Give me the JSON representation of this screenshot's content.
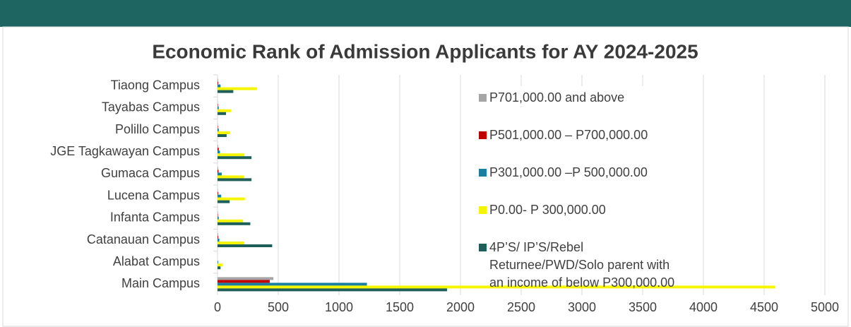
{
  "chart_data": {
    "type": "bar",
    "orientation": "horizontal",
    "title": "Economic Rank of Admission Applicants for AY 2024-2025",
    "categories": [
      "Tiaong Campus",
      "Tayabas Campus",
      "Polillo Campus",
      "JGE Tagkawayan Campus",
      "Gumaca Campus",
      "Lucena Campus",
      "Infanta Campus",
      "Catanauan Campus",
      "Alabat Campus",
      "Main Campus"
    ],
    "series": [
      {
        "name": "P701,000.00 and above",
        "color": "#a5a5a5",
        "values": [
          5,
          2,
          2,
          5,
          5,
          3,
          3,
          5,
          0,
          460
        ]
      },
      {
        "name": "P501,000.00 – P700,000.00",
        "color": "#c00000",
        "values": [
          5,
          3,
          3,
          10,
          8,
          5,
          3,
          5,
          0,
          430
        ]
      },
      {
        "name": "P301,000.00 –P 500,000.00",
        "color": "#1b7fa0",
        "values": [
          25,
          10,
          10,
          20,
          35,
          30,
          10,
          15,
          5,
          1230
        ]
      },
      {
        "name": "P0.00- P 300,000.00",
        "color": "#f5f500",
        "values": [
          325,
          110,
          100,
          220,
          215,
          225,
          210,
          220,
          40,
          4590
        ]
      },
      {
        "name": "4P’S/ IP’S/Rebel Returnee/PWD/Solo parent with an income of below P300,000.00",
        "color": "#1e5f5a",
        "values": [
          130,
          70,
          75,
          280,
          280,
          100,
          270,
          450,
          25,
          1890
        ]
      }
    ],
    "xlim": [
      0,
      5000
    ],
    "xticks": [
      0,
      500,
      1000,
      1500,
      2000,
      2500,
      3000,
      3500,
      4000,
      4500,
      5000
    ],
    "grid": true
  }
}
